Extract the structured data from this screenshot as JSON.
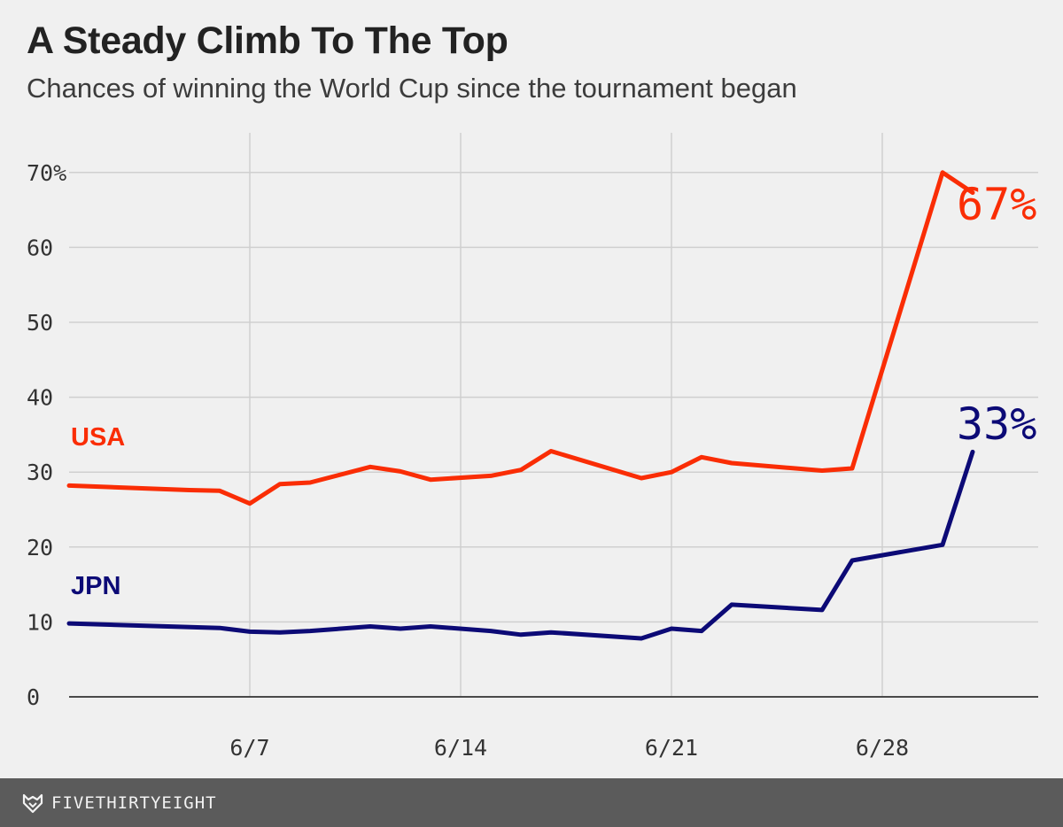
{
  "header": {
    "title": "A Steady Climb To The Top",
    "subtitle": "Chances of winning the World Cup since the tournament began"
  },
  "footer": {
    "brand": "FIVETHIRTYEIGHT",
    "logo_icon": "fox-icon"
  },
  "colors": {
    "background": "#f0f0f0",
    "usa": "#fa2d05",
    "jpn": "#0c0a76",
    "grid": "#cfcfcf",
    "footer": "#5b5b5b"
  },
  "chart_data": {
    "type": "line",
    "ylim": [
      0,
      70
    ],
    "y_ticks": [
      0,
      10,
      20,
      30,
      40,
      50,
      60,
      70
    ],
    "y_tick_labels": [
      "0",
      "10",
      "20",
      "30",
      "40",
      "50",
      "60",
      "70%"
    ],
    "x_range": [
      "6/1",
      "7/6"
    ],
    "x_ticks": [
      "6/7",
      "6/14",
      "6/21",
      "6/28"
    ],
    "grid": "on",
    "series": [
      {
        "name": "USA",
        "color": "#fa2d05",
        "end_label": "67%",
        "points": [
          [
            "6/1",
            28.2
          ],
          [
            "6/5",
            27.6
          ],
          [
            "6/6",
            27.5
          ],
          [
            "6/7",
            25.8
          ],
          [
            "6/8",
            28.4
          ],
          [
            "6/9",
            28.6
          ],
          [
            "6/11",
            30.7
          ],
          [
            "6/12",
            30.1
          ],
          [
            "6/13",
            29.0
          ],
          [
            "6/15",
            29.5
          ],
          [
            "6/16",
            30.3
          ],
          [
            "6/17",
            32.8
          ],
          [
            "6/20",
            29.2
          ],
          [
            "6/21",
            30.0
          ],
          [
            "6/22",
            32.0
          ],
          [
            "6/23",
            31.2
          ],
          [
            "6/26",
            30.2
          ],
          [
            "6/27",
            30.5
          ],
          [
            "6/30",
            70.0
          ],
          [
            "7/1",
            67.3
          ]
        ]
      },
      {
        "name": "JPN",
        "color": "#0c0a76",
        "end_label": "33%",
        "points": [
          [
            "6/1",
            9.8
          ],
          [
            "6/6",
            9.2
          ],
          [
            "6/7",
            8.7
          ],
          [
            "6/8",
            8.6
          ],
          [
            "6/9",
            8.8
          ],
          [
            "6/11",
            9.4
          ],
          [
            "6/12",
            9.1
          ],
          [
            "6/13",
            9.4
          ],
          [
            "6/15",
            8.8
          ],
          [
            "6/16",
            8.3
          ],
          [
            "6/17",
            8.6
          ],
          [
            "6/20",
            7.8
          ],
          [
            "6/21",
            9.1
          ],
          [
            "6/22",
            8.8
          ],
          [
            "6/23",
            12.3
          ],
          [
            "6/26",
            11.6
          ],
          [
            "6/27",
            18.2
          ],
          [
            "6/30",
            20.3
          ],
          [
            "7/1",
            32.7
          ]
        ]
      }
    ]
  }
}
